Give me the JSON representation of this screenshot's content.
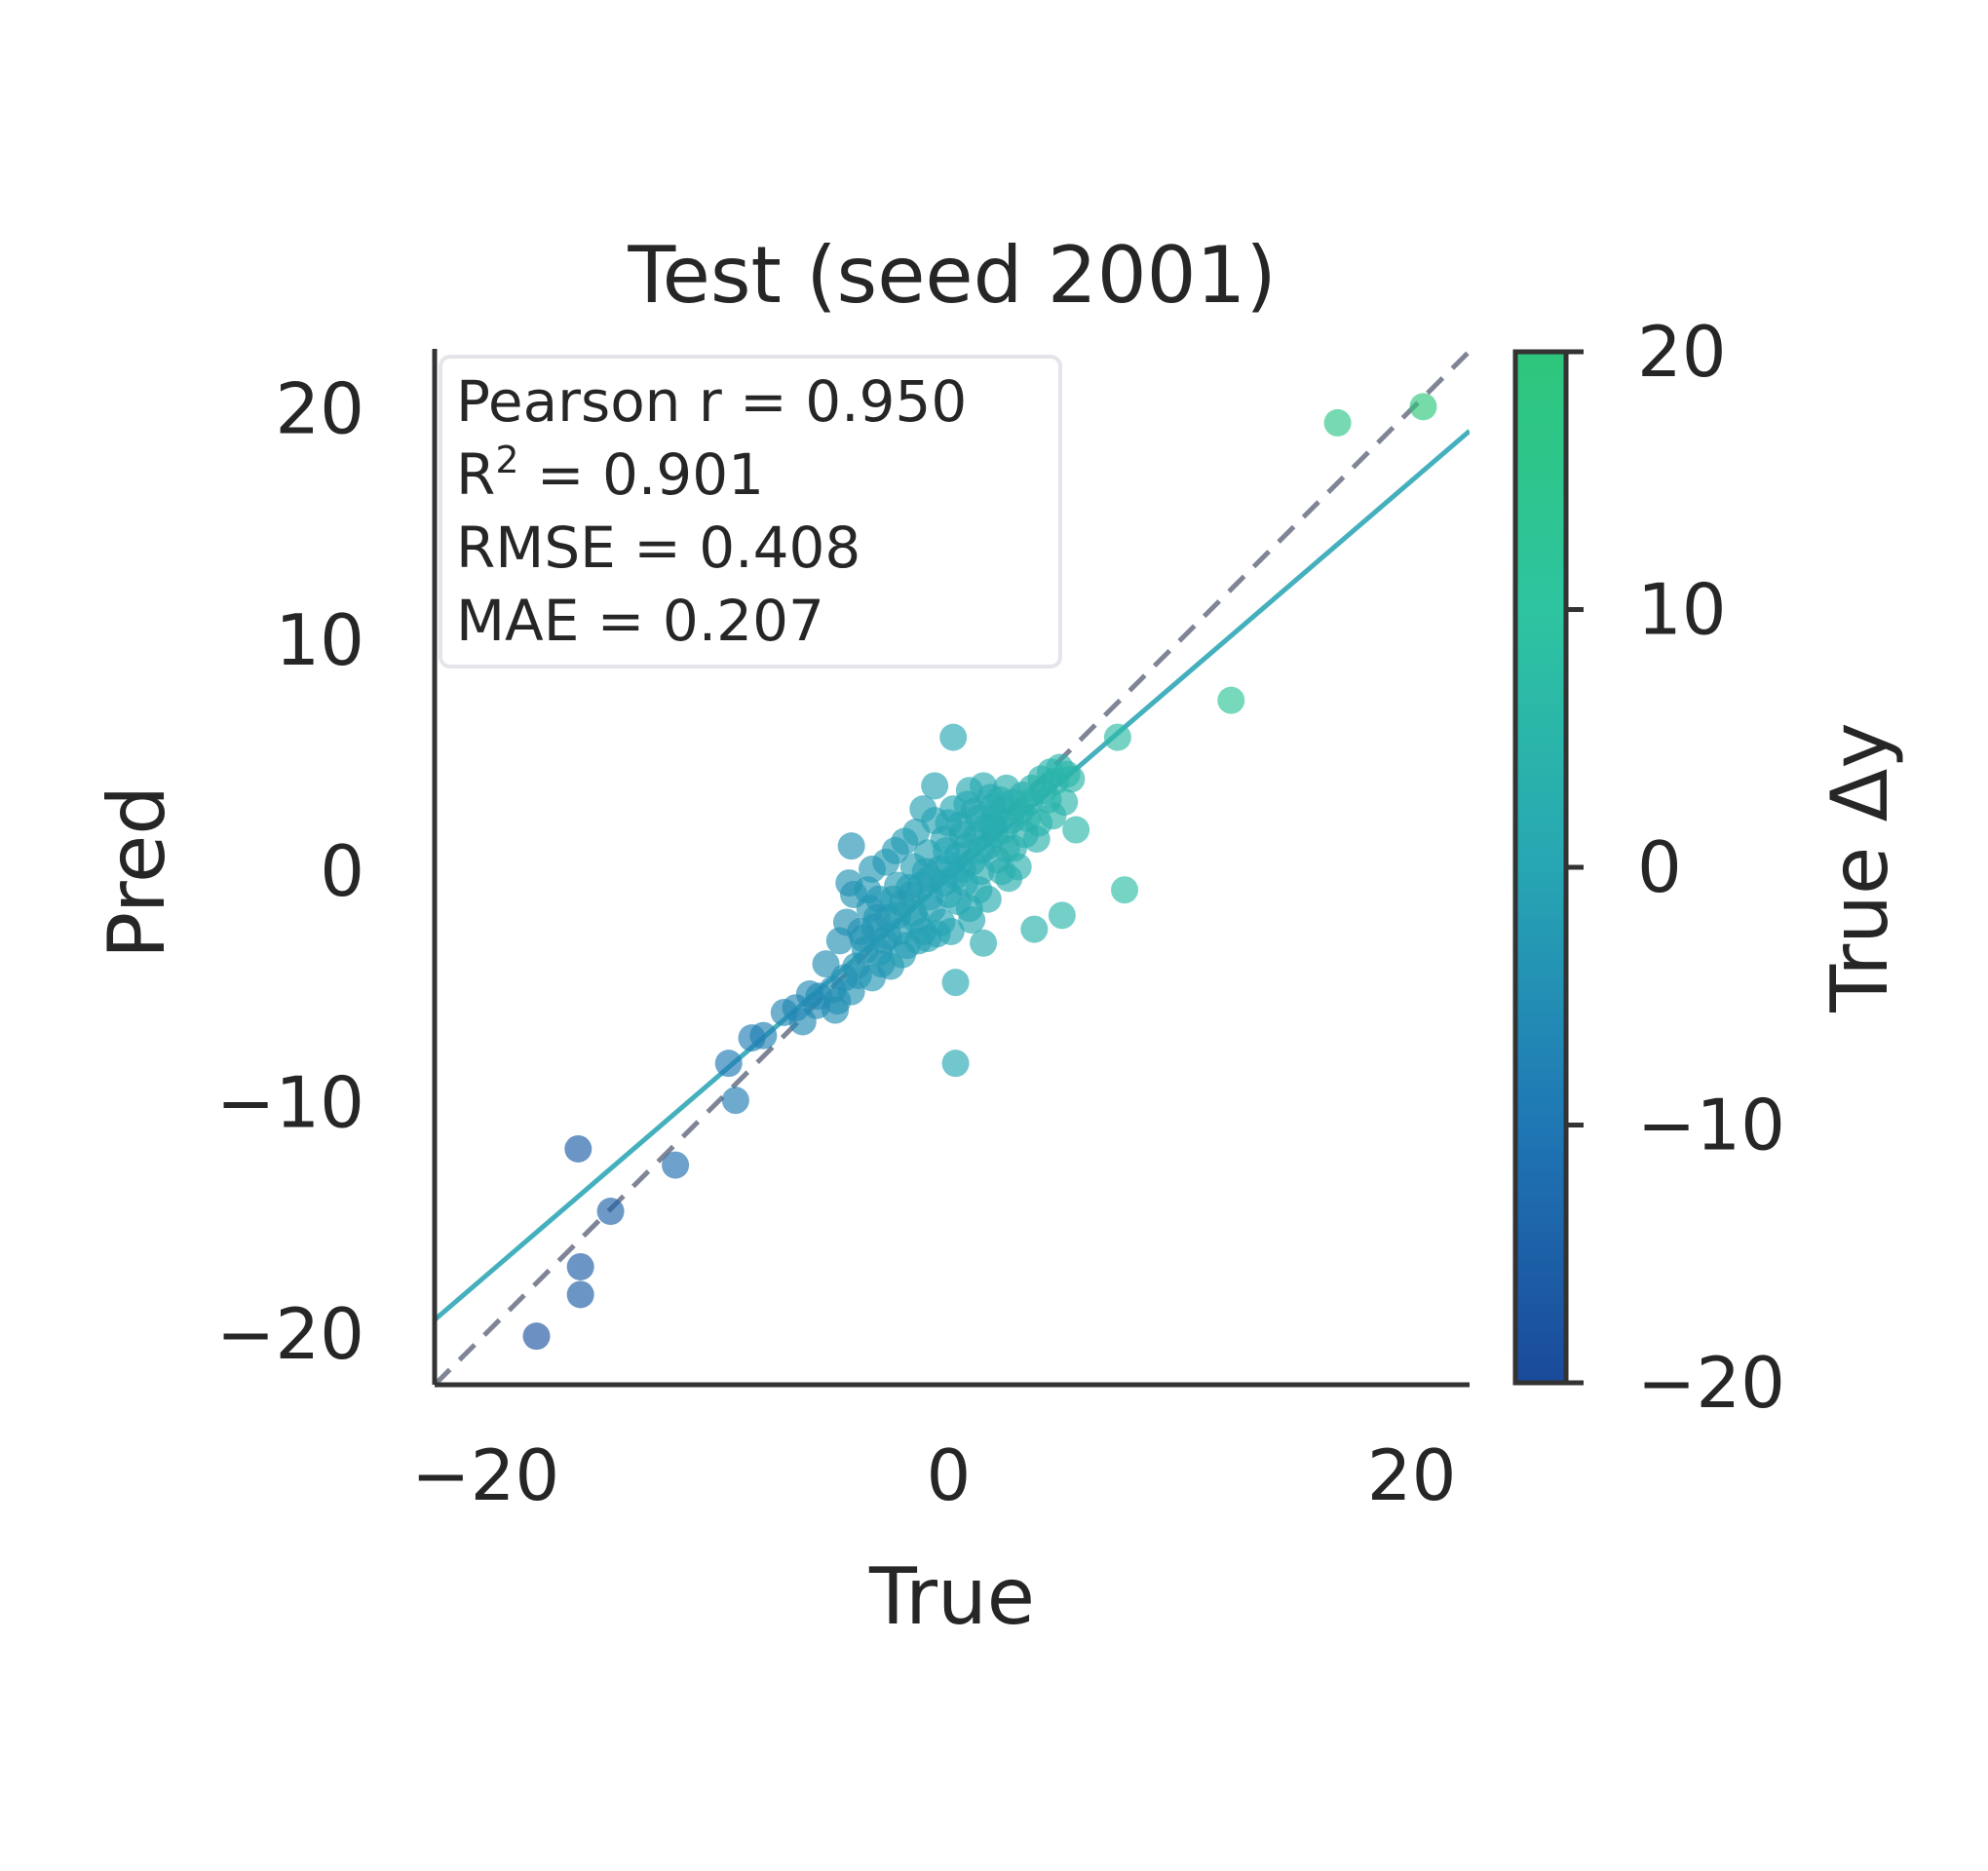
{
  "chart_data": {
    "type": "scatter",
    "title": "Test (seed 2001)",
    "xlabel": "True",
    "ylabel": "Pred",
    "xlim": [
      -22.2,
      22.5
    ],
    "ylim": [
      -22.2,
      22.6
    ],
    "xticks": [
      -20,
      0,
      20
    ],
    "yticks": [
      -20,
      -10,
      0,
      10,
      20
    ],
    "tick_labels": {
      "x": [
        "−20",
        "0",
        "20"
      ],
      "y": [
        "−20",
        "−10",
        "0",
        "10",
        "20"
      ],
      "colorbar": [
        "−20",
        "−10",
        "0",
        "10",
        "20"
      ]
    },
    "grid": false,
    "stats_box": {
      "position": "top-left",
      "pearson": "Pearson r = 0.950",
      "r2_prefix": "R",
      "r2_sup": "2",
      "r2_rest": " = 0.901",
      "rmse": "RMSE = 0.408",
      "mae": "MAE = 0.207"
    },
    "identity_line": {
      "style": "dashed",
      "color": "#7f8596"
    },
    "fit_line": {
      "color": "#45b0bd",
      "slope": 0.86,
      "intercept": -0.3
    },
    "colorbar": {
      "label": "True Δy",
      "range": [
        -20,
        20
      ],
      "ticks": [
        -20,
        -10,
        0,
        10,
        20
      ],
      "colors": [
        "#1a4a9a",
        "#1f77b4",
        "#27a6b3",
        "#2ec4a0",
        "#2ec67b"
      ]
    },
    "points": [
      [
        20.5,
        20.1
      ],
      [
        16.8,
        19.4
      ],
      [
        12.2,
        7.4
      ],
      [
        7.3,
        5.8
      ],
      [
        7.6,
        -0.8
      ],
      [
        4.9,
        -1.9
      ],
      [
        3.7,
        -2.5
      ],
      [
        0.3,
        -4.8
      ],
      [
        0.3,
        -8.3
      ],
      [
        0.2,
        5.8
      ],
      [
        -0.6,
        3.7
      ],
      [
        -1.1,
        2.7
      ],
      [
        5.5,
        1.8
      ],
      [
        1.5,
        -3.1
      ],
      [
        -16.0,
        -12.0
      ],
      [
        -17.8,
        -20.1
      ],
      [
        -15.9,
        -17.1
      ],
      [
        -15.9,
        -18.3
      ],
      [
        -14.6,
        -14.7
      ],
      [
        -11.8,
        -12.7
      ],
      [
        -9.2,
        -9.9
      ],
      [
        -9.5,
        -8.3
      ],
      [
        -8.5,
        -7.2
      ],
      [
        -8.0,
        -7.1
      ],
      [
        -4.9,
        -6.0
      ],
      [
        -4.3,
        -0.5
      ],
      [
        -4.2,
        1.1
      ],
      [
        -5.6,
        -5.4
      ],
      [
        -3.2,
        -2.4
      ],
      [
        -2.6,
        -2.0
      ],
      [
        -2.0,
        -1.4
      ],
      [
        -1.6,
        -1.0
      ],
      [
        -1.2,
        -0.6
      ],
      [
        -0.8,
        -0.3
      ],
      [
        -0.4,
        0.1
      ],
      [
        0.0,
        0.3
      ],
      [
        0.4,
        0.7
      ],
      [
        0.8,
        1.1
      ],
      [
        1.2,
        1.5
      ],
      [
        1.6,
        1.9
      ],
      [
        2.0,
        2.3
      ],
      [
        2.4,
        2.7
      ],
      [
        2.8,
        3.0
      ],
      [
        3.2,
        3.3
      ],
      [
        3.6,
        3.6
      ],
      [
        4.0,
        4.0
      ],
      [
        4.4,
        4.3
      ],
      [
        4.8,
        4.5
      ],
      [
        5.1,
        4.2
      ],
      [
        -3.0,
        -1.2
      ],
      [
        -2.2,
        -0.6
      ],
      [
        -1.5,
        0.2
      ],
      [
        -0.9,
        0.8
      ],
      [
        -0.2,
        1.4
      ],
      [
        0.5,
        2.0
      ],
      [
        1.1,
        2.6
      ],
      [
        1.8,
        3.2
      ],
      [
        2.5,
        3.6
      ],
      [
        -2.8,
        -3.0
      ],
      [
        -2.1,
        -2.6
      ],
      [
        -1.4,
        -2.1
      ],
      [
        -0.7,
        -1.6
      ],
      [
        0.0,
        -1.0
      ],
      [
        0.7,
        -0.5
      ],
      [
        1.4,
        0.0
      ],
      [
        2.1,
        0.5
      ],
      [
        2.8,
        1.0
      ],
      [
        3.3,
        1.6
      ],
      [
        -3.6,
        -3.4
      ],
      [
        -4.0,
        -4.1
      ],
      [
        -4.5,
        -4.6
      ],
      [
        -5.0,
        -5.1
      ],
      [
        -3.8,
        -2.6
      ],
      [
        -3.4,
        -1.6
      ],
      [
        -2.5,
        -4.1
      ],
      [
        -1.8,
        -3.2
      ],
      [
        -1.1,
        -2.6
      ],
      [
        -0.3,
        -2.2
      ],
      [
        0.9,
        -1.6
      ],
      [
        1.7,
        -1.2
      ],
      [
        2.6,
        -0.3
      ],
      [
        3.0,
        0.2
      ],
      [
        3.9,
        2.1
      ],
      [
        4.3,
        3.1
      ],
      [
        -0.5,
        -2.7
      ],
      [
        -1.9,
        1.3
      ],
      [
        -2.7,
        0.4
      ],
      [
        -3.3,
        0.1
      ],
      [
        0.2,
        2.7
      ],
      [
        0.9,
        3.5
      ],
      [
        1.5,
        3.7
      ],
      [
        2.2,
        3.1
      ],
      [
        -4.7,
        -3.0
      ],
      [
        -5.3,
        -4.0
      ],
      [
        -6.0,
        -5.3
      ],
      [
        -6.6,
        -5.9
      ],
      [
        -7.1,
        -6.1
      ],
      [
        -6.3,
        -6.5
      ],
      [
        -5.7,
        -5.8
      ],
      [
        -3.9,
        -4.5
      ],
      [
        -2.9,
        -4.0
      ],
      [
        -1.3,
        -3.0
      ],
      [
        0.1,
        -2.6
      ],
      [
        1.0,
        -2.1
      ],
      [
        -0.1,
        0.9
      ],
      [
        0.6,
        1.6
      ],
      [
        1.3,
        2.3
      ],
      [
        2.0,
        1.6
      ],
      [
        2.7,
        2.2
      ],
      [
        -1.0,
        0.0
      ],
      [
        -1.7,
        -0.7
      ],
      [
        -2.4,
        -1.2
      ],
      [
        -3.1,
        -2.0
      ],
      [
        -3.7,
        -2.9
      ],
      [
        0.3,
        -0.2
      ],
      [
        1.0,
        0.4
      ],
      [
        1.7,
        1.1
      ],
      [
        2.4,
        1.8
      ],
      [
        3.1,
        2.6
      ],
      [
        3.5,
        3.0
      ],
      [
        4.1,
        3.5
      ],
      [
        4.6,
        3.9
      ],
      [
        5.3,
        4.0
      ],
      [
        5.0,
        3.0
      ],
      [
        -4.4,
        -2.2
      ],
      [
        -4.1,
        -1.0
      ],
      [
        -3.5,
        -0.8
      ],
      [
        -2.3,
        0.9
      ],
      [
        -1.4,
        1.7
      ],
      [
        -0.6,
        2.2
      ],
      [
        0.0,
        2.1
      ],
      [
        0.8,
        2.9
      ],
      [
        1.9,
        2.8
      ],
      [
        2.3,
        0.0
      ],
      [
        3.8,
        1.4
      ],
      [
        4.5,
        2.4
      ],
      [
        -4.8,
        -5.6
      ],
      [
        -4.2,
        -5.2
      ],
      [
        -3.3,
        -4.6
      ],
      [
        -2.0,
        -3.6
      ],
      [
        -0.9,
        -2.9
      ],
      [
        0.4,
        -1.3
      ],
      [
        1.3,
        -0.8
      ],
      [
        2.5,
        1.0
      ],
      [
        -1.5,
        -1.8
      ],
      [
        -0.8,
        -1.1
      ],
      [
        -0.2,
        -0.5
      ],
      [
        0.6,
        0.1
      ],
      [
        1.4,
        0.9
      ],
      [
        -2.6,
        -2.8
      ],
      [
        -3.0,
        -3.5
      ],
      [
        -2.2,
        -1.9
      ],
      [
        1.9,
        2.0
      ],
      [
        3.4,
        2.3
      ]
    ]
  }
}
